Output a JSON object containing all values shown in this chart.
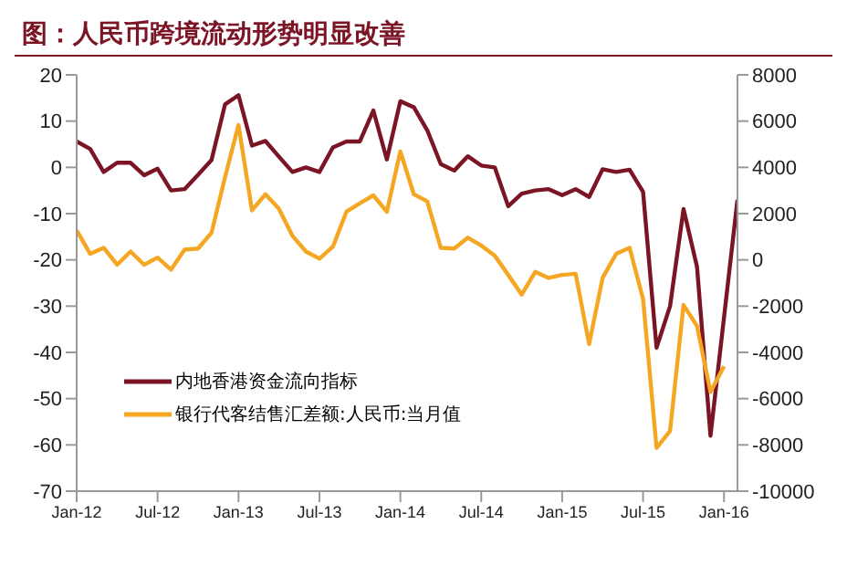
{
  "chart_data": {
    "type": "line",
    "title": "图：人民币跨境流动形势明显改善",
    "categories": [
      "Jan-12",
      null,
      null,
      null,
      null,
      null,
      "Jul-12",
      null,
      null,
      null,
      null,
      null,
      "Jan-13",
      null,
      null,
      null,
      null,
      null,
      "Jul-13",
      null,
      null,
      null,
      null,
      null,
      "Jan-14",
      null,
      null,
      null,
      null,
      null,
      "Jul-14",
      null,
      null,
      null,
      null,
      null,
      "Jan-15",
      null,
      null,
      null,
      null,
      null,
      "Jul-15",
      null,
      null,
      null,
      null,
      null,
      "Jan-16",
      null
    ],
    "series": [
      {
        "name": "内地香港资金流向指标",
        "color": "#7b1424",
        "axis": "y",
        "values": [
          5.6,
          4,
          -1,
          1,
          1,
          -1.7,
          -0.3,
          -5,
          -4.7,
          -1.6,
          1.6,
          13.6,
          15.6,
          4.7,
          5.7,
          2.3,
          -1,
          0,
          -1,
          4.3,
          5.6,
          5.6,
          12.3,
          1.7,
          14.3,
          13,
          8,
          0.7,
          -0.7,
          2.4,
          0.4,
          0,
          -8.4,
          -5.7,
          -5,
          -4.7,
          -6,
          -4.7,
          -6.4,
          -0.4,
          -1,
          -0.5,
          -5.3,
          -39,
          -30,
          -9,
          -21.5,
          -58,
          -32.5,
          -7
        ]
      },
      {
        "name": "银行代客结售汇差额:人民币:当月值",
        "color": "#f5a623",
        "axis": "y2",
        "values": [
          1280,
          260,
          520,
          -210,
          360,
          -210,
          100,
          -420,
          440,
          490,
          1170,
          3570,
          5830,
          2140,
          2840,
          2210,
          1040,
          360,
          50,
          570,
          2080,
          2450,
          2790,
          2080,
          4690,
          2840,
          2530,
          520,
          490,
          960,
          620,
          180,
          -650,
          -1500,
          -520,
          -780,
          -650,
          -600,
          -3640,
          -780,
          260,
          520,
          -1690,
          -8130,
          -7400,
          -1950,
          -2860,
          -5710,
          -4600,
          null
        ]
      }
    ],
    "ylim": [
      -70,
      20
    ],
    "yticks": [
      20,
      10,
      0,
      -10,
      -20,
      -30,
      -40,
      -50,
      -60,
      -70
    ],
    "y2lim": [
      -10000,
      8000
    ],
    "y2ticks": [
      8000,
      6000,
      4000,
      2000,
      0,
      -2000,
      -4000,
      -6000,
      -8000,
      -10000
    ],
    "grid": false,
    "legend": "bottom left",
    "marker": "none",
    "line_style": "solid"
  }
}
